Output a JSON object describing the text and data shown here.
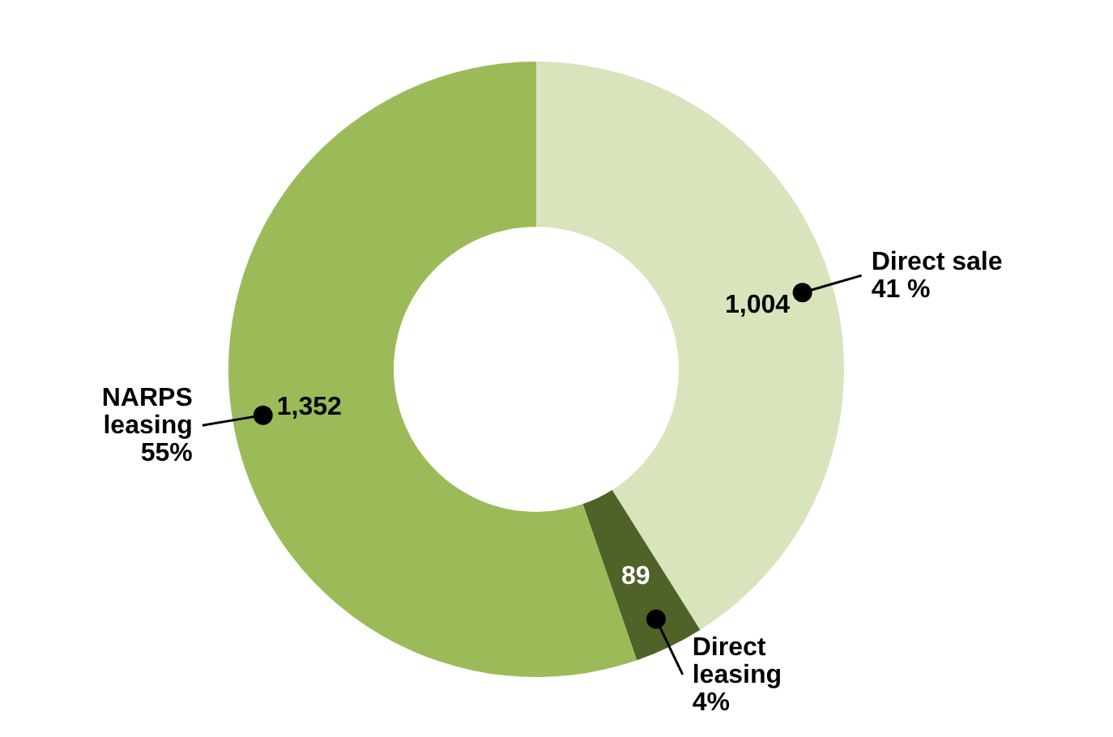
{
  "chart_data": {
    "type": "donut",
    "categories": [
      "Direct sale",
      "Direct leasing",
      "NARPS leasing"
    ],
    "values": [
      1004,
      89,
      1352
    ],
    "value_labels": [
      "1,004",
      "89",
      "1,352"
    ],
    "colors": [
      "#d8e4bc",
      "#4f6228",
      "#9bbb59"
    ],
    "annotations": [
      {
        "text": "41 %",
        "x": "Direct sale"
      },
      {
        "text": "4%",
        "x": "Direct leasing"
      },
      {
        "text": "55%",
        "x": "NARPS leasing"
      }
    ]
  }
}
